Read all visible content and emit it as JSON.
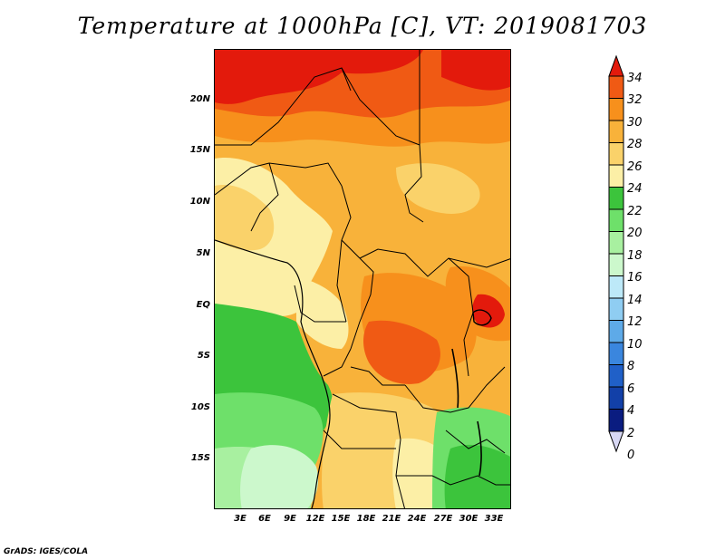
{
  "title": "Temperature at 1000hPa [C], VT: 2019081703",
  "credit": "GrADS: IGES/COLA",
  "map": {
    "lat_ticks": [
      "20N",
      "15N",
      "10N",
      "5N",
      "EQ",
      "5S",
      "10S",
      "15S"
    ],
    "lon_ticks": [
      "3E",
      "6E",
      "9E",
      "12E",
      "15E",
      "18E",
      "21E",
      "24E",
      "27E",
      "30E",
      "33E"
    ]
  },
  "colorbar": {
    "labels": [
      "34",
      "32",
      "30",
      "28",
      "26",
      "24",
      "22",
      "20",
      "18",
      "16",
      "14",
      "12",
      "10",
      "8",
      "6",
      "4",
      "2",
      "0"
    ],
    "colors": {
      "above_32": "#e31a0c",
      "30_32": "#f05a14",
      "28_30": "#f7901c",
      "26_28": "#f8b23a",
      "24_26": "#fad26a",
      "22_24": "#fcefa6",
      "20_22": "#3cc43c",
      "18_20": "#6ee06a",
      "16_18": "#a8f0a0",
      "14_16": "#ccf8cc",
      "12_14": "#bde9f8",
      "10_12": "#8fcdf2",
      "8_10": "#5eaae8",
      "6_8": "#3a86de",
      "4_6": "#2060c8",
      "2_4": "#1240a8",
      "0_2": "#0a1c80",
      "below_0": "#d8d8f4"
    }
  }
}
